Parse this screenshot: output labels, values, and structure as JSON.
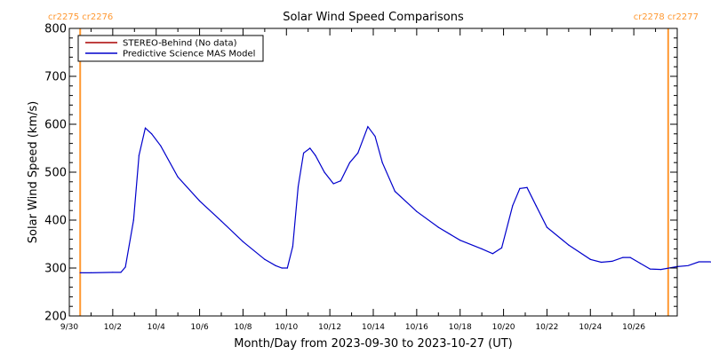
{
  "header": {
    "title": "Solar Wind Speed Comparisons",
    "left_markers": "cr2275 cr2276",
    "right_markers": "cr2278 cr2277"
  },
  "colors": {
    "model": "#0000cc",
    "stereo": "#aa0000",
    "boundary": "#ff9933",
    "axis": "#000000"
  },
  "chart_data": {
    "type": "line",
    "title": "Solar Wind Speed Comparisons",
    "xlabel": "Month/Day from 2023-09-30 to 2023-10-27 (UT)",
    "ylabel": "Solar Wind Speed (km/s)",
    "ylim": [
      200,
      800
    ],
    "xlim": [
      "2023-09-30",
      "2023-10-28"
    ],
    "y_ticks": [
      200,
      300,
      400,
      500,
      600,
      700,
      800
    ],
    "x_ticks": [
      {
        "date": "2023-09-30",
        "label": "9/30"
      },
      {
        "date": "2023-10-02",
        "label": "10/2"
      },
      {
        "date": "2023-10-04",
        "label": "10/4"
      },
      {
        "date": "2023-10-06",
        "label": "10/6"
      },
      {
        "date": "2023-10-08",
        "label": "10/8"
      },
      {
        "date": "2023-10-10",
        "label": "10/10"
      },
      {
        "date": "2023-10-12",
        "label": "10/12"
      },
      {
        "date": "2023-10-14",
        "label": "10/14"
      },
      {
        "date": "2023-10-16",
        "label": "10/16"
      },
      {
        "date": "2023-10-18",
        "label": "10/18"
      },
      {
        "date": "2023-10-20",
        "label": "10/20"
      },
      {
        "date": "2023-10-22",
        "label": "10/22"
      },
      {
        "date": "2023-10-24",
        "label": "10/24"
      },
      {
        "date": "2023-10-26",
        "label": "10/26"
      }
    ],
    "carrington_boundaries": [
      "2023-09-30T12:00",
      "2023-10-27T14:00"
    ],
    "legend": {
      "placement": "top-left",
      "entries": [
        {
          "label": "STEREO-Behind (No data)",
          "color": "#aa0000"
        },
        {
          "label": "Predictive Science MAS Model",
          "color": "#0000cc"
        }
      ]
    },
    "series": [
      {
        "name": "Predictive Science MAS Model",
        "color": "#0000cc",
        "points": [
          [
            "2023-09-30T12:00",
            290
          ],
          [
            "2023-10-01T00:00",
            290
          ],
          [
            "2023-10-02T00:00",
            291
          ],
          [
            "2023-10-02T09:00",
            291
          ],
          [
            "2023-10-02T14:00",
            302
          ],
          [
            "2023-10-02T23:00",
            400
          ],
          [
            "2023-10-03T05:00",
            535
          ],
          [
            "2023-10-03T12:00",
            592
          ],
          [
            "2023-10-03T19:00",
            580
          ],
          [
            "2023-10-04T05:00",
            555
          ],
          [
            "2023-10-05T00:00",
            490
          ],
          [
            "2023-10-06T00:00",
            440
          ],
          [
            "2023-10-07T00:00",
            398
          ],
          [
            "2023-10-08T00:00",
            355
          ],
          [
            "2023-10-09T00:00",
            318
          ],
          [
            "2023-10-09T12:00",
            305
          ],
          [
            "2023-10-09T19:00",
            300
          ],
          [
            "2023-10-10T01:00",
            300
          ],
          [
            "2023-10-10T07:00",
            345
          ],
          [
            "2023-10-10T13:00",
            470
          ],
          [
            "2023-10-10T19:00",
            540
          ],
          [
            "2023-10-11T02:00",
            550
          ],
          [
            "2023-10-11T08:00",
            535
          ],
          [
            "2023-10-11T18:00",
            500
          ],
          [
            "2023-10-12T04:00",
            476
          ],
          [
            "2023-10-12T12:00",
            482
          ],
          [
            "2023-10-12T22:00",
            520
          ],
          [
            "2023-10-13T07:00",
            540
          ],
          [
            "2023-10-13T18:00",
            595
          ],
          [
            "2023-10-14T02:00",
            575
          ],
          [
            "2023-10-14T10:00",
            520
          ],
          [
            "2023-10-15T00:00",
            460
          ],
          [
            "2023-10-16T00:00",
            418
          ],
          [
            "2023-10-17T00:00",
            385
          ],
          [
            "2023-10-18T00:00",
            358
          ],
          [
            "2023-10-19T00:00",
            340
          ],
          [
            "2023-10-19T12:00",
            330
          ],
          [
            "2023-10-19T22:00",
            342
          ],
          [
            "2023-10-20T10:00",
            430
          ],
          [
            "2023-10-20T18:00",
            466
          ],
          [
            "2023-10-21T02:00",
            468
          ],
          [
            "2023-10-21T12:00",
            430
          ],
          [
            "2023-10-22T00:00",
            385
          ],
          [
            "2023-10-23T00:00",
            348
          ],
          [
            "2023-10-24T00:00",
            318
          ],
          [
            "2023-10-24T12:00",
            312
          ],
          [
            "2023-10-25T00:00",
            314
          ],
          [
            "2023-10-25T12:00",
            322
          ],
          [
            "2023-10-25T20:00",
            322
          ],
          [
            "2023-10-26T07:00",
            310
          ],
          [
            "2023-10-26T18:00",
            298
          ],
          [
            "2023-10-27T06:00",
            297
          ],
          [
            "2023-10-28T00:00",
            303
          ],
          [
            "2023-10-28T12:00",
            305
          ],
          [
            "2023-10-29T00:00",
            313
          ],
          [
            "2023-10-29T12:00",
            313
          ],
          [
            "2023-10-30T00:00",
            310
          ]
        ]
      }
    ]
  }
}
